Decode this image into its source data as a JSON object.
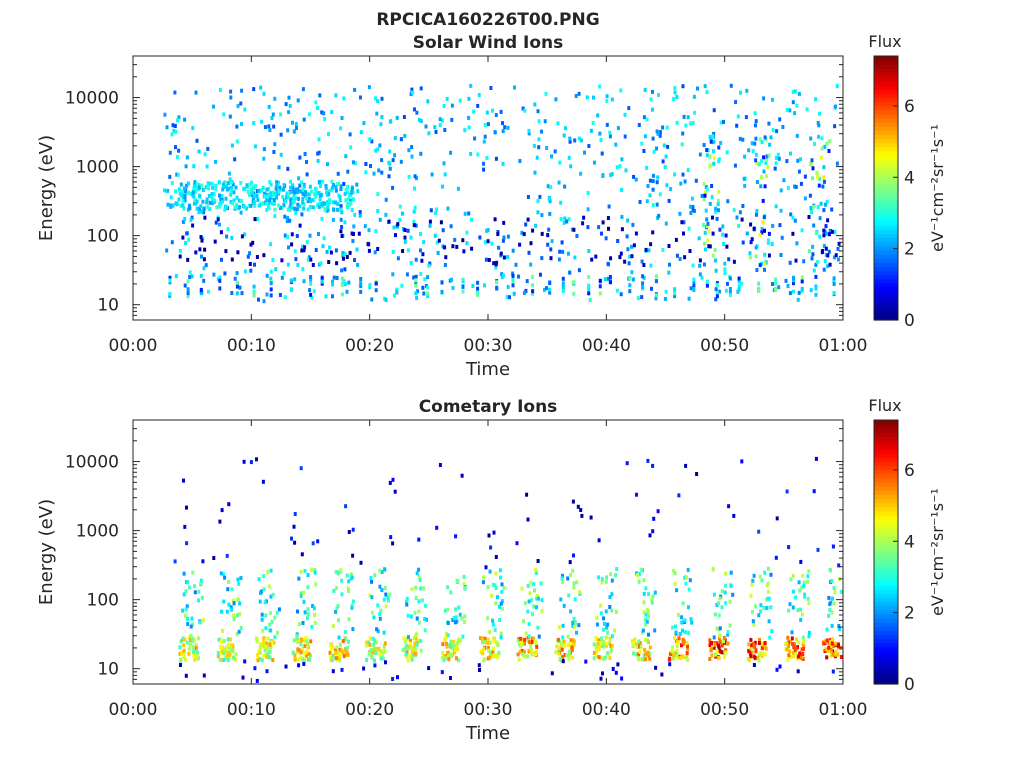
{
  "figure_title": "RPCICA160226T00.PNG",
  "chart_data": [
    {
      "type": "heatmap",
      "title": "Solar Wind Ions",
      "xlabel": "Time",
      "ylabel": "Energy (eV)",
      "x_tick_labels": [
        "00:00",
        "00:10",
        "00:20",
        "00:30",
        "00:40",
        "00:50",
        "01:00"
      ],
      "x_ticks_min": [
        0,
        10,
        20,
        30,
        40,
        50,
        60
      ],
      "xlim_min": [
        0,
        60
      ],
      "y_tick_labels": [
        "10",
        "100",
        "1000",
        "10000"
      ],
      "y_ticks": [
        10,
        100,
        1000,
        10000
      ],
      "ylim": [
        6,
        40000
      ],
      "y_scale": "log",
      "colorbar": {
        "title": "Flux",
        "label": "eV⁻¹cm⁻²sr⁻¹s⁻¹",
        "range": [
          0,
          7.4
        ],
        "ticks": [
          0,
          2,
          4,
          6
        ],
        "colormap": "jet"
      },
      "features": {
        "populated_start_min": 2.5,
        "populated_end_min": 59.5,
        "low_energy_band_ev": [
          14,
          28
        ],
        "low_energy_band_flux": 3,
        "mid_energy_band_ev": [
          250,
          650
        ],
        "bursts_min": [
          49,
          53,
          58
        ],
        "peak_flux": 4.8
      }
    },
    {
      "type": "heatmap",
      "title": "Cometary Ions",
      "xlabel": "Time",
      "ylabel": "Energy (eV)",
      "x_tick_labels": [
        "00:00",
        "00:10",
        "00:20",
        "00:30",
        "00:40",
        "00:50",
        "01:00"
      ],
      "x_ticks_min": [
        0,
        10,
        20,
        30,
        40,
        50,
        60
      ],
      "xlim_min": [
        0,
        60
      ],
      "y_tick_labels": [
        "10",
        "100",
        "1000",
        "10000"
      ],
      "y_ticks": [
        10,
        100,
        1000,
        10000
      ],
      "ylim": [
        6,
        40000
      ],
      "y_scale": "log",
      "colorbar": {
        "title": "Flux",
        "label": "eV⁻¹cm⁻²sr⁻¹s⁻¹",
        "range": [
          0,
          7.4
        ],
        "ticks": [
          0,
          2,
          4,
          6
        ],
        "colormap": "jet"
      },
      "features": {
        "periodic_burst_times_min": [
          4.6,
          7.8,
          11,
          14.2,
          17.3,
          20.4,
          23.5,
          26.8,
          30,
          33.2,
          36.4,
          39.6,
          42.8,
          46,
          49.4,
          52.6,
          55.8,
          59
        ],
        "burst_energy_band_ev": [
          14,
          30
        ],
        "burst_peak_flux": [
          5.4,
          5.3,
          5.6,
          5.8,
          5.9,
          5.5,
          5.6,
          5.7,
          5.9,
          6.3,
          6.1,
          5.8,
          6.2,
          6.5,
          7.1,
          7.2,
          6.8,
          7.0
        ],
        "tail_energy_range_ev": [
          30,
          300
        ],
        "sparse_high_energy_ev": [
          300,
          12000
        ]
      }
    }
  ]
}
